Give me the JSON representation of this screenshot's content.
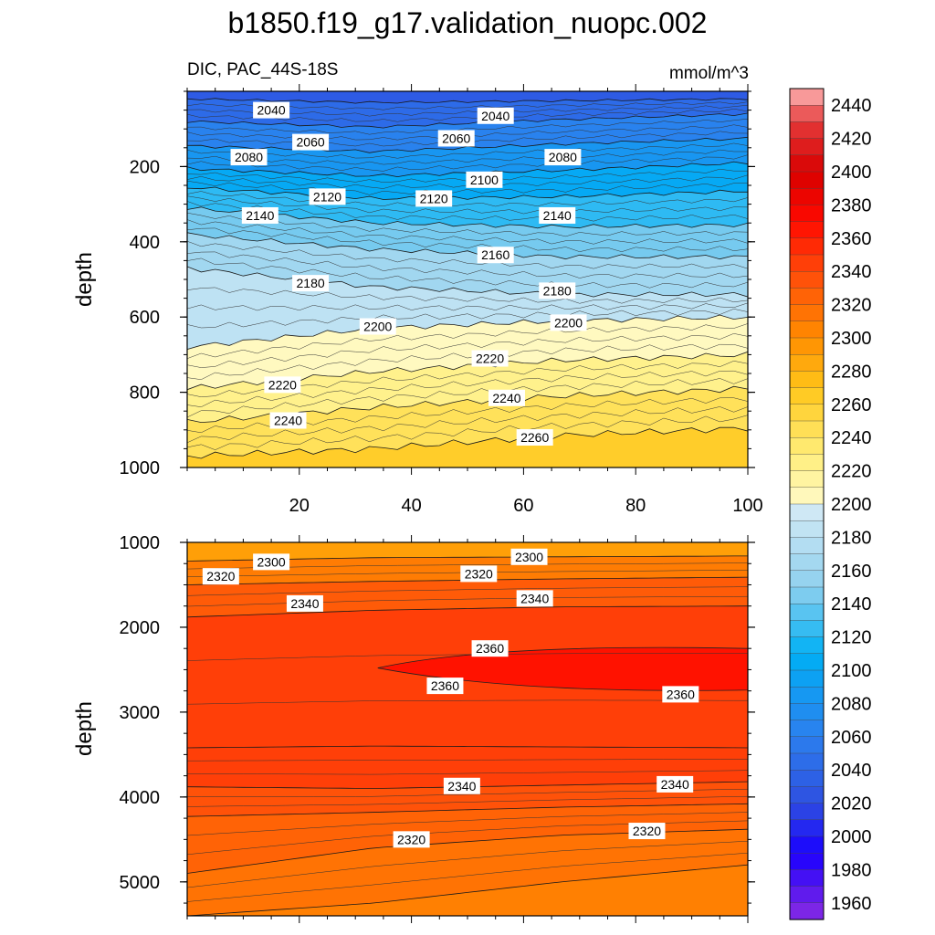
{
  "figure": {
    "title": "b1850.f19_g17.validation_nuopc.002",
    "variable_label": "DIC, PAC_44S-18S",
    "units_label": "mmol/m^3"
  },
  "chart_data": [
    {
      "type": "heatmap",
      "panel": "upper",
      "xlabel": "",
      "ylabel": "depth",
      "xlim": [
        0,
        100
      ],
      "ylim": [
        0,
        1000
      ],
      "x_ticks": [
        20,
        40,
        60,
        80,
        100
      ],
      "y_ticks": [
        200,
        400,
        600,
        800,
        1000
      ],
      "contour_interval": 5,
      "contours": [
        {
          "value": 2040,
          "depths": [
            20,
            30,
            25,
            20
          ]
        },
        {
          "value": 2060,
          "depths": [
            80,
            95,
            75,
            60
          ]
        },
        {
          "value": 2080,
          "depths": [
            145,
            160,
            140,
            125
          ]
        },
        {
          "value": 2100,
          "depths": [
            205,
            225,
            210,
            190
          ]
        },
        {
          "value": 2120,
          "depths": [
            255,
            285,
            280,
            265
          ]
        },
        {
          "value": 2140,
          "depths": [
            310,
            350,
            360,
            355
          ]
        },
        {
          "value": 2160,
          "depths": [
            380,
            420,
            440,
            440
          ]
        },
        {
          "value": 2180,
          "depths": [
            470,
            520,
            540,
            540
          ]
        },
        {
          "value": 2200,
          "depths": [
            680,
            630,
            610,
            600
          ]
        },
        {
          "value": 2220,
          "depths": [
            790,
            745,
            715,
            700
          ]
        },
        {
          "value": 2240,
          "depths": [
            880,
            840,
            810,
            790
          ]
        },
        {
          "value": 2260,
          "depths": [
            970,
            950,
            915,
            895
          ]
        }
      ],
      "contour_labels": [
        {
          "text": "2040",
          "x": 15,
          "y": 50
        },
        {
          "text": "2040",
          "x": 55,
          "y": 65
        },
        {
          "text": "2060",
          "x": 22,
          "y": 135
        },
        {
          "text": "2060",
          "x": 48,
          "y": 125
        },
        {
          "text": "2080",
          "x": 11,
          "y": 175
        },
        {
          "text": "2080",
          "x": 67,
          "y": 175
        },
        {
          "text": "2100",
          "x": 53,
          "y": 235
        },
        {
          "text": "2120",
          "x": 25,
          "y": 280
        },
        {
          "text": "2120",
          "x": 44,
          "y": 285
        },
        {
          "text": "2140",
          "x": 13,
          "y": 330
        },
        {
          "text": "2140",
          "x": 66,
          "y": 330
        },
        {
          "text": "2160",
          "x": 55,
          "y": 435
        },
        {
          "text": "2180",
          "x": 22,
          "y": 510
        },
        {
          "text": "2180",
          "x": 66,
          "y": 530
        },
        {
          "text": "2200",
          "x": 34,
          "y": 625
        },
        {
          "text": "2200",
          "x": 68,
          "y": 615
        },
        {
          "text": "2220",
          "x": 54,
          "y": 710
        },
        {
          "text": "2220",
          "x": 17,
          "y": 780
        },
        {
          "text": "2240",
          "x": 57,
          "y": 815
        },
        {
          "text": "2240",
          "x": 18,
          "y": 875
        },
        {
          "text": "2260",
          "x": 62,
          "y": 920
        }
      ]
    },
    {
      "type": "heatmap",
      "panel": "lower",
      "xlabel": "",
      "ylabel": "depth",
      "xlim": [
        0,
        100
      ],
      "ylim": [
        1000,
        5400
      ],
      "x_ticks": [
        20,
        40,
        60,
        80,
        100
      ],
      "y_ticks": [
        1000,
        2000,
        3000,
        4000,
        5000
      ],
      "contour_interval": 10,
      "contours": [
        {
          "value": 2300,
          "depths": [
            1220,
            1180,
            1170,
            1160
          ]
        },
        {
          "value": 2320,
          "depths": [
            1500,
            1460,
            1430,
            1410
          ]
        },
        {
          "value": 2340,
          "depths": [
            1880,
            1800,
            1760,
            1750
          ]
        },
        {
          "value": 2350,
          "depths": [
            3420,
            3400,
            3410,
            3420
          ]
        },
        {
          "value": 2340,
          "depths": [
            3880,
            3900,
            3860,
            3820
          ]
        },
        {
          "value": 2330,
          "depths": [
            4230,
            4180,
            4120,
            4080
          ]
        },
        {
          "value": 2320,
          "depths": [
            4900,
            4600,
            4450,
            4380
          ]
        },
        {
          "value": 2310,
          "depths": [
            5400,
            5250,
            5000,
            4800
          ]
        }
      ],
      "core_2360": {
        "x_start": 34,
        "depth_mid": 2480
      },
      "contour_labels": [
        {
          "text": "2300",
          "x": 15,
          "y": 1230
        },
        {
          "text": "2300",
          "x": 61,
          "y": 1170
        },
        {
          "text": "2320",
          "x": 6,
          "y": 1400
        },
        {
          "text": "2320",
          "x": 52,
          "y": 1370
        },
        {
          "text": "2340",
          "x": 21,
          "y": 1720
        },
        {
          "text": "2340",
          "x": 62,
          "y": 1660
        },
        {
          "text": "2360",
          "x": 54,
          "y": 2250
        },
        {
          "text": "2360",
          "x": 46,
          "y": 2690
        },
        {
          "text": "2360",
          "x": 88,
          "y": 2790
        },
        {
          "text": "2340",
          "x": 49,
          "y": 3870
        },
        {
          "text": "2340",
          "x": 87,
          "y": 3850
        },
        {
          "text": "2320",
          "x": 40,
          "y": 4500
        },
        {
          "text": "2320",
          "x": 82,
          "y": 4400
        }
      ]
    }
  ],
  "colorbar": {
    "min": 1950,
    "max": 2450,
    "step": 20,
    "tick_labels": [
      "1960",
      "1980",
      "2000",
      "2020",
      "2040",
      "2060",
      "2080",
      "2100",
      "2120",
      "2140",
      "2160",
      "2180",
      "2200",
      "2220",
      "2240",
      "2260",
      "2280",
      "2300",
      "2320",
      "2340",
      "2360",
      "2380",
      "2400",
      "2420",
      "2440"
    ],
    "stops": [
      {
        "value": 1950,
        "color": "#8a2be2"
      },
      {
        "value": 1990,
        "color": "#1a00ff"
      },
      {
        "value": 2020,
        "color": "#2e4fe0"
      },
      {
        "value": 2060,
        "color": "#2c7fee"
      },
      {
        "value": 2110,
        "color": "#00b0f5"
      },
      {
        "value": 2150,
        "color": "#8fd0ee"
      },
      {
        "value": 2195,
        "color": "#cfe8f5"
      },
      {
        "value": 2200,
        "color": "#fffac8"
      },
      {
        "value": 2230,
        "color": "#ffee7a"
      },
      {
        "value": 2270,
        "color": "#ffc619"
      },
      {
        "value": 2300,
        "color": "#ff8c00"
      },
      {
        "value": 2340,
        "color": "#ff4a0a"
      },
      {
        "value": 2370,
        "color": "#ff0a00"
      },
      {
        "value": 2400,
        "color": "#d80000"
      },
      {
        "value": 2430,
        "color": "#e43a3a"
      },
      {
        "value": 2450,
        "color": "#ffb8b8"
      }
    ]
  }
}
